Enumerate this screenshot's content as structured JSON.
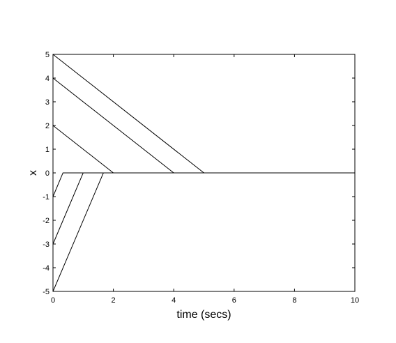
{
  "chart_data": {
    "type": "line",
    "title": "",
    "xlabel": "time (secs)",
    "ylabel": "x",
    "xlim": [
      0,
      10
    ],
    "ylim": [
      -5,
      5
    ],
    "xticks": [
      "0",
      "2",
      "4",
      "6",
      "8",
      "10"
    ],
    "yticks": [
      "-5",
      "-4",
      "-3",
      "-2",
      "-1",
      "0",
      "1",
      "2",
      "3",
      "4",
      "5"
    ],
    "grid": false,
    "legend": "none",
    "line_color": "#000000",
    "series": [
      {
        "x": [
          0,
          5,
          10
        ],
        "y": [
          5,
          0,
          0
        ]
      },
      {
        "x": [
          0,
          4,
          10
        ],
        "y": [
          4,
          0,
          0
        ]
      },
      {
        "x": [
          0,
          2,
          10
        ],
        "y": [
          2,
          0,
          0
        ]
      },
      {
        "x": [
          0,
          0.33,
          10
        ],
        "y": [
          -1,
          0,
          0
        ]
      },
      {
        "x": [
          0,
          1,
          10
        ],
        "y": [
          -3,
          0,
          0
        ]
      },
      {
        "x": [
          0,
          1.67,
          10
        ],
        "y": [
          -5,
          0,
          0
        ]
      }
    ]
  }
}
